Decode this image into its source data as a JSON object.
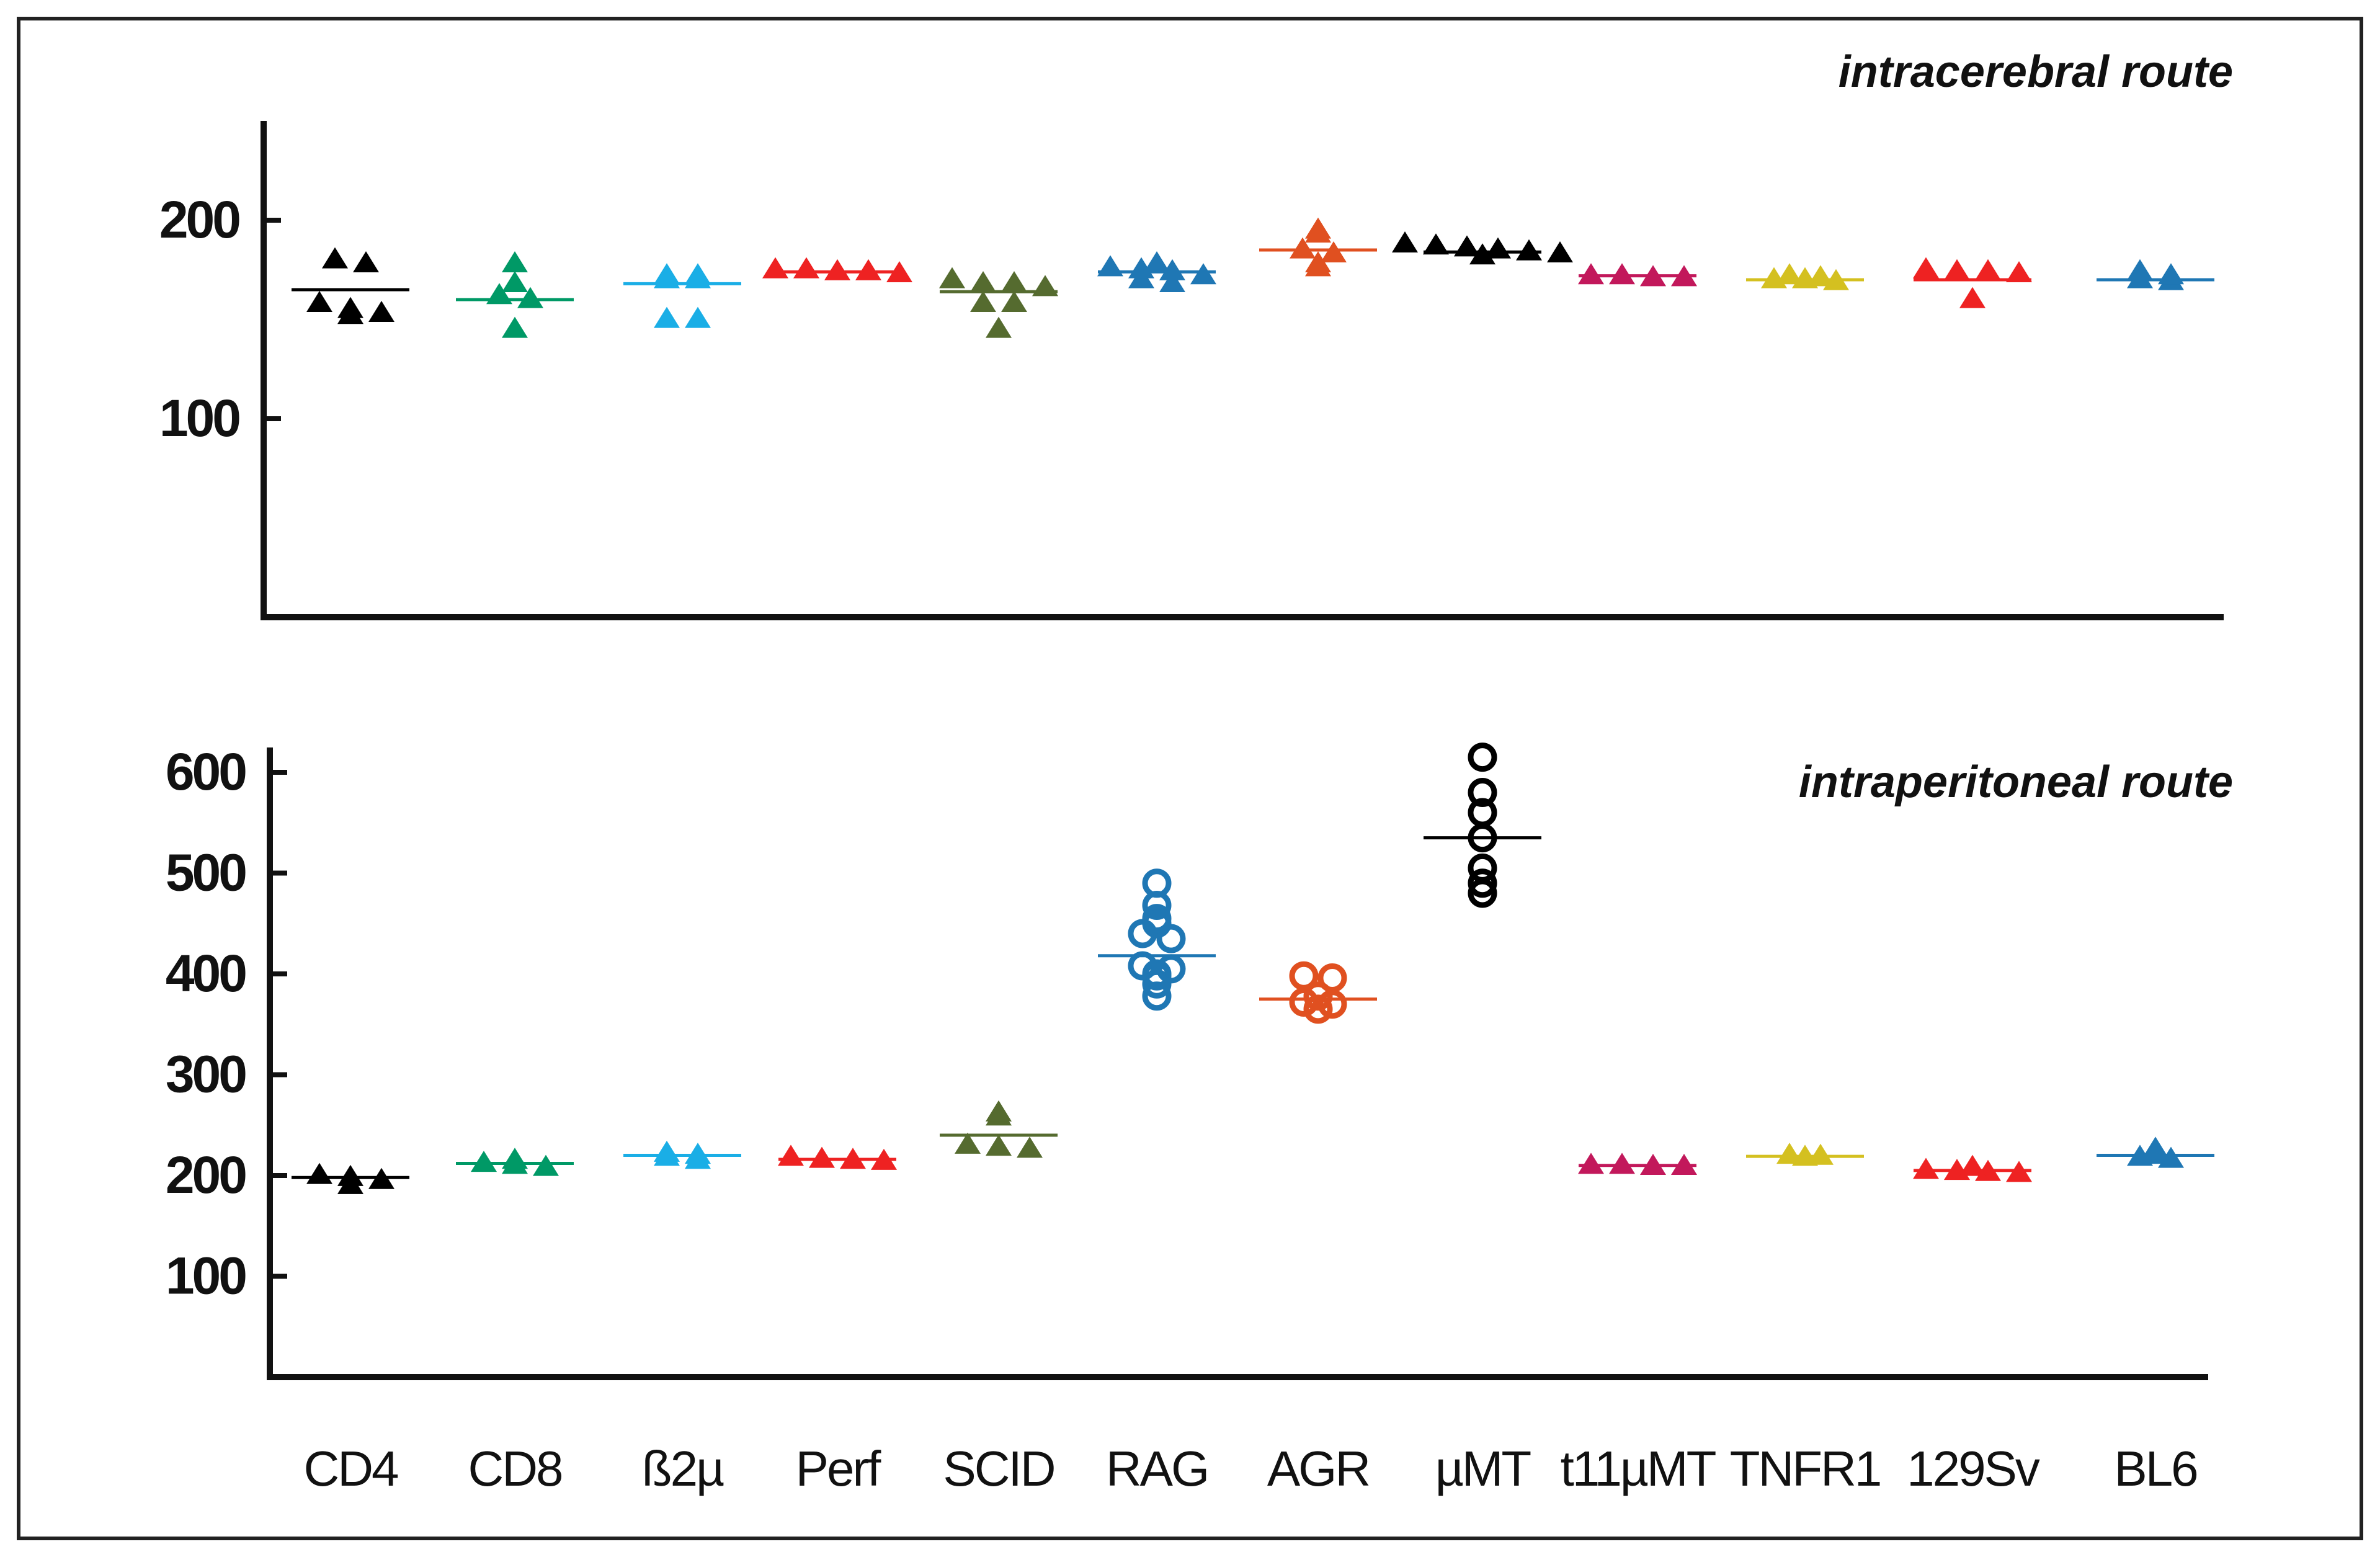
{
  "chart_data": [
    {
      "type": "scatter",
      "title": "intracerebral route",
      "xlabel": "",
      "ylabel": "",
      "ylim": [
        0,
        260
      ],
      "yticks": [
        100,
        200
      ],
      "grid": false,
      "marker": "filled-triangle",
      "categories": [
        "CD4",
        "CD8",
        "ß2µ",
        "Perf",
        "SCID",
        "RAG",
        "AGR",
        "µMT",
        "t11µMT",
        "TNFR1",
        "129Sv",
        "BL6"
      ],
      "series": [
        {
          "category": "CD4",
          "color": "#000000",
          "values": [
            180,
            178,
            158,
            155,
            153,
            152
          ],
          "mean": 165
        },
        {
          "category": "CD8",
          "color": "#009966",
          "values": [
            178,
            168,
            162,
            160,
            145
          ],
          "mean": 160
        },
        {
          "category": "ß2µ",
          "color": "#1aaee6",
          "values": [
            172,
            172,
            170,
            170,
            150,
            150
          ],
          "mean": 168
        },
        {
          "category": "Perf",
          "color": "#ee2222",
          "values": [
            175,
            175,
            174,
            174,
            173
          ],
          "mean": 174
        },
        {
          "category": "SCID",
          "color": "#556b2f",
          "values": [
            170,
            168,
            168,
            166,
            158,
            158,
            145
          ],
          "mean": 164
        },
        {
          "category": "RAG",
          "color": "#1f77b4",
          "values": [
            178,
            176,
            175,
            174,
            172,
            170,
            168
          ],
          "mean": 174
        },
        {
          "category": "AGR",
          "color": "#e05020",
          "values": [
            195,
            193,
            185,
            183,
            178,
            176
          ],
          "mean": 185
        },
        {
          "category": "µMT",
          "color": "#000000",
          "values": [
            188,
            187,
            186,
            185,
            184,
            183,
            182
          ],
          "mean": 184
        },
        {
          "category": "t11µMT",
          "color": "#c2185b",
          "values": [
            172,
            172,
            171,
            171
          ],
          "mean": 172
        },
        {
          "category": "TNFR1",
          "color": "#d4c020",
          "values": [
            172,
            171,
            170,
            170,
            169
          ],
          "mean": 170
        },
        {
          "category": "129Sv",
          "color": "#ee2222",
          "values": [
            175,
            174,
            174,
            173,
            160
          ],
          "mean": 170
        },
        {
          "category": "BL6",
          "color": "#1f77b4",
          "values": [
            174,
            172,
            170,
            169
          ],
          "mean": 170
        }
      ]
    },
    {
      "type": "scatter",
      "title": "intraperitoneal route",
      "xlabel": "",
      "ylabel": "",
      "ylim": [
        0,
        620
      ],
      "yticks": [
        100,
        200,
        300,
        400,
        500,
        600
      ],
      "grid": false,
      "categories": [
        "CD4",
        "CD8",
        "ß2µ",
        "Perf",
        "SCID",
        "RAG",
        "AGR",
        "µMT",
        "t11µMT",
        "TNFR1",
        "129Sv",
        "BL6"
      ],
      "series": [
        {
          "category": "CD4",
          "color": "#000000",
          "marker": "filled-triangle",
          "values": [
            200,
            198,
            195,
            190
          ],
          "mean": 198
        },
        {
          "category": "CD8",
          "color": "#009966",
          "marker": "filled-triangle",
          "values": [
            215,
            212,
            210,
            208
          ],
          "mean": 212
        },
        {
          "category": "ß2µ",
          "color": "#1aaee6",
          "marker": "filled-triangle",
          "values": [
            222,
            220,
            218,
            215
          ],
          "mean": 220
        },
        {
          "category": "Perf",
          "color": "#ee2222",
          "marker": "filled-triangle",
          "values": [
            218,
            216,
            215,
            214
          ],
          "mean": 216
        },
        {
          "category": "SCID",
          "color": "#556b2f",
          "marker": "filled-triangle",
          "values": [
            262,
            258,
            230,
            228,
            226
          ],
          "mean": 240
        },
        {
          "category": "RAG",
          "color": "#1f77b4",
          "marker": "open-circle",
          "values": [
            490,
            468,
            455,
            450,
            440,
            435,
            408,
            405,
            400,
            398,
            390,
            378
          ],
          "mean": 418
        },
        {
          "category": "AGR",
          "color": "#e05020",
          "marker": "open-circle",
          "values": [
            398,
            396,
            378,
            372,
            370,
            365
          ],
          "mean": 375
        },
        {
          "category": "µMT",
          "color": "#000000",
          "marker": "open-circle",
          "values": [
            615,
            580,
            560,
            535,
            505,
            490,
            480
          ],
          "mean": 535
        },
        {
          "category": "t11µMT",
          "color": "#c2185b",
          "marker": "filled-triangle",
          "values": [
            210,
            210,
            209,
            209
          ],
          "mean": 210
        },
        {
          "category": "TNFR1",
          "color": "#d4c020",
          "marker": "filled-triangle",
          "values": [
            220,
            219,
            218
          ],
          "mean": 219
        },
        {
          "category": "129Sv",
          "color": "#ee2222",
          "marker": "filled-triangle",
          "values": [
            208,
            205,
            204,
            203,
            202
          ],
          "mean": 205
        },
        {
          "category": "BL6",
          "color": "#1f77b4",
          "marker": "filled-triangle",
          "values": [
            226,
            220,
            218,
            216
          ],
          "mean": 220
        }
      ]
    }
  ]
}
